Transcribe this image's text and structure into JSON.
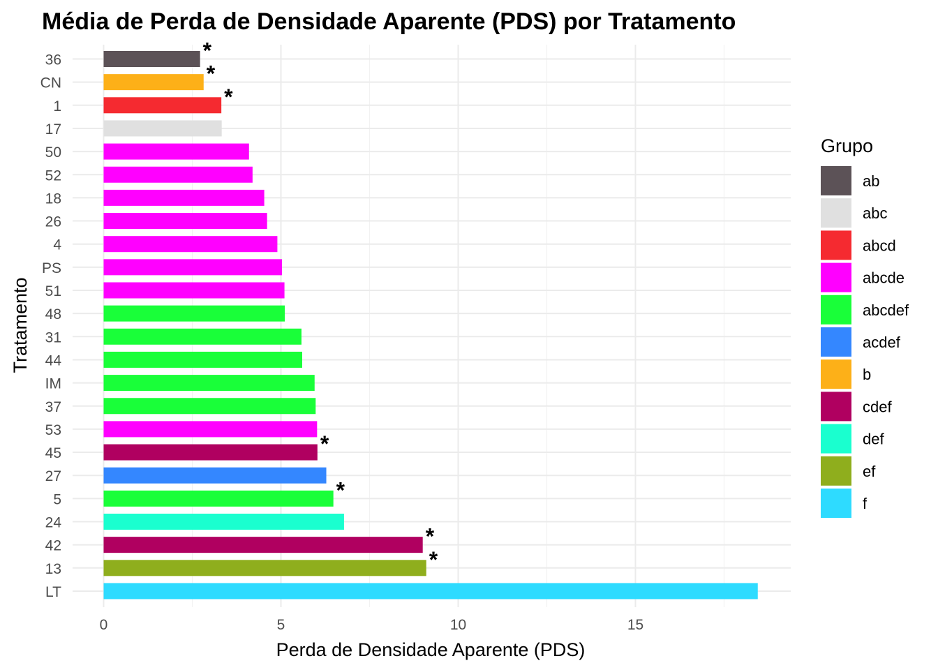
{
  "chart_data": {
    "type": "bar",
    "orientation": "horizontal",
    "title": "Média de Perda de Densidade Aparente (PDS) por Tratamento",
    "xlabel": "Perda de Densidade Aparente (PDS)",
    "ylabel": "Tratamento",
    "xlim": [
      0,
      19.4
    ],
    "x_ticks": [
      "0",
      "5",
      "10",
      "15"
    ],
    "x_tick_values": [
      0,
      5,
      10,
      15
    ],
    "grid": true,
    "legend": {
      "title": "Grupo",
      "position": "right"
    },
    "groups": [
      {
        "name": "ab",
        "color": "#5c5257"
      },
      {
        "name": "abc",
        "color": "#e0e0e0"
      },
      {
        "name": "abcd",
        "color": "#f52a30"
      },
      {
        "name": "abcde",
        "color": "#ff00ff"
      },
      {
        "name": "abcdef",
        "color": "#19ff39"
      },
      {
        "name": "acdef",
        "color": "#3487ff"
      },
      {
        "name": "b",
        "color": "#fdb018"
      },
      {
        "name": "cdef",
        "color": "#b00060"
      },
      {
        "name": "def",
        "color": "#1affcf"
      },
      {
        "name": "ef",
        "color": "#8fae1d"
      },
      {
        "name": "f",
        "color": "#2edbff"
      }
    ],
    "star_label": "*",
    "categories": [
      "36",
      "CN",
      "1",
      "17",
      "50",
      "52",
      "18",
      "26",
      "4",
      "PS",
      "51",
      "48",
      "31",
      "44",
      "IM",
      "37",
      "53",
      "45",
      "27",
      "5",
      "24",
      "42",
      "13",
      "LT"
    ],
    "values": [
      2.72,
      2.82,
      3.32,
      3.33,
      4.1,
      4.2,
      4.53,
      4.61,
      4.9,
      5.03,
      5.1,
      5.11,
      5.58,
      5.6,
      5.95,
      5.98,
      6.02,
      6.03,
      6.28,
      6.48,
      6.78,
      9.0,
      9.1,
      18.45
    ],
    "group_of": [
      "ab",
      "b",
      "abcd",
      "abc",
      "abcde",
      "abcde",
      "abcde",
      "abcde",
      "abcde",
      "abcde",
      "abcde",
      "abcdef",
      "abcdef",
      "abcdef",
      "abcdef",
      "abcdef",
      "abcde",
      "cdef",
      "acdef",
      "abcdef",
      "def",
      "cdef",
      "ef",
      "f"
    ],
    "significant": [
      true,
      true,
      true,
      false,
      false,
      false,
      false,
      false,
      false,
      false,
      false,
      false,
      false,
      false,
      false,
      false,
      false,
      true,
      false,
      true,
      false,
      true,
      true,
      false
    ]
  }
}
